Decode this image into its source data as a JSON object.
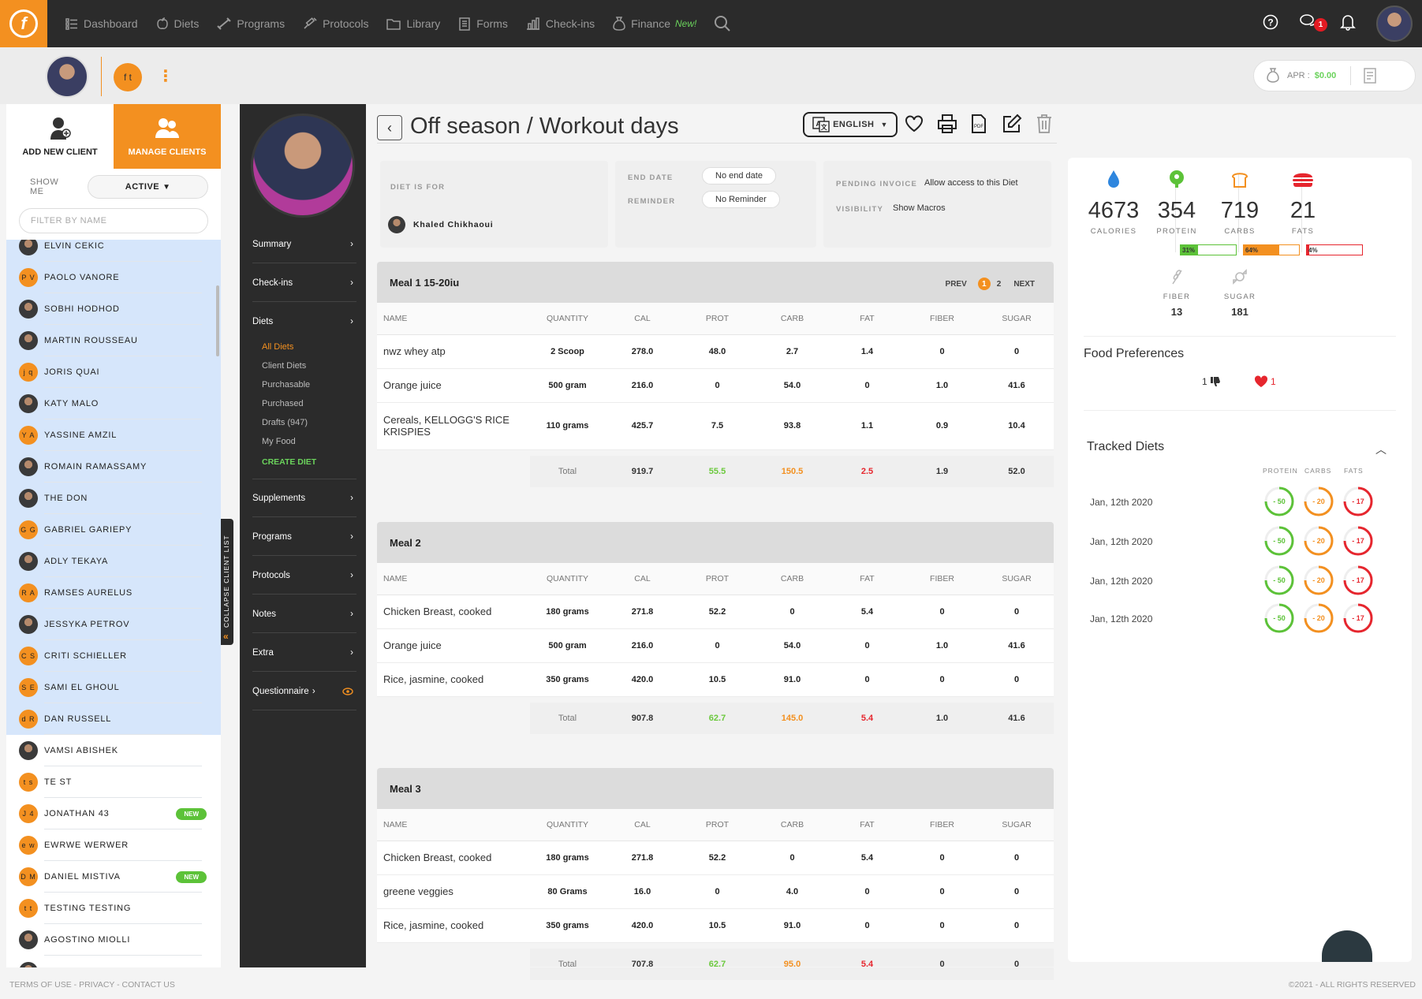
{
  "nav": {
    "items": [
      {
        "label": "Dashboard",
        "icon": "dashboard-icon"
      },
      {
        "label": "Diets",
        "icon": "apple-icon"
      },
      {
        "label": "Programs",
        "icon": "dumbbell-icon"
      },
      {
        "label": "Protocols",
        "icon": "syringe-icon"
      },
      {
        "label": "Library",
        "icon": "folder-icon"
      },
      {
        "label": "Forms",
        "icon": "form-icon"
      },
      {
        "label": "Check-ins",
        "icon": "chart-icon"
      },
      {
        "label": "Finance",
        "icon": "money-bag-icon"
      }
    ],
    "finance_new": "New!",
    "chat_badge": "1"
  },
  "subheader": {
    "initials": "f t",
    "apr_label": "APR :",
    "apr_value": "$0.00"
  },
  "clients": {
    "add_label": "ADD NEW CLIENT",
    "manage_label": "MANAGE CLIENTS",
    "show_me": "SHOW ME",
    "status": "ACTIVE",
    "filter_placeholder": "FILTER BY NAME",
    "collapse_label": "COLLAPSE CLIENT LIST",
    "list": [
      {
        "name": "ELVIN CEKIC",
        "initials": "",
        "hl": true
      },
      {
        "name": "PAOLO VANORE",
        "initials": "P V",
        "hl": true
      },
      {
        "name": "SOBHI HODHOD",
        "initials": "",
        "hl": true
      },
      {
        "name": "MARTIN ROUSSEAU",
        "initials": "",
        "hl": true
      },
      {
        "name": "JORIS QUAI",
        "initials": "j q",
        "hl": true
      },
      {
        "name": "KATY MALO",
        "initials": "",
        "hl": true
      },
      {
        "name": "YASSINE AMZIL",
        "initials": "Y A",
        "hl": true
      },
      {
        "name": "ROMAIN RAMASSAMY",
        "initials": "",
        "hl": true
      },
      {
        "name": "THE DON",
        "initials": "",
        "hl": true
      },
      {
        "name": "GABRIEL GARIEPY",
        "initials": "G G",
        "hl": true
      },
      {
        "name": "ADLY TEKAYA",
        "initials": "",
        "hl": true
      },
      {
        "name": "RAMSES AURELUS",
        "initials": "R A",
        "hl": true
      },
      {
        "name": "JESSYKA PETROV",
        "initials": "",
        "hl": true
      },
      {
        "name": "CRITI SCHIELLER",
        "initials": "C S",
        "hl": true
      },
      {
        "name": "SAMI EL GHOUL",
        "initials": "S E",
        "hl": true
      },
      {
        "name": "DAN RUSSELL",
        "initials": "d R",
        "hl": true
      },
      {
        "name": "VAMSI ABISHEK",
        "initials": "",
        "hl": false
      },
      {
        "name": "TE ST",
        "initials": "t s",
        "hl": false
      },
      {
        "name": "JONATHAN 43",
        "initials": "J 4",
        "hl": false,
        "badge": "NEW"
      },
      {
        "name": "EWRWE WERWER",
        "initials": "e w",
        "hl": false
      },
      {
        "name": "DANIEL MISTIVA",
        "initials": "D M",
        "hl": false,
        "badge": "NEW"
      },
      {
        "name": "TESTING TESTING",
        "initials": "t t",
        "hl": false
      },
      {
        "name": "AGOSTINO MIOLLI",
        "initials": "",
        "hl": false
      },
      {
        "name": "",
        "initials": "",
        "hl": false
      }
    ]
  },
  "sidenav": {
    "items": [
      "Summary",
      "Check-ins",
      "Diets",
      "Supplements",
      "Programs",
      "Protocols",
      "Notes",
      "Extra",
      "Questionnaire"
    ],
    "diet_sub": [
      "All Diets",
      "Client Diets",
      "Purchasable",
      "Purchased",
      "Drafts (947)",
      "My Food",
      "CREATE DIET"
    ]
  },
  "main": {
    "title": "Off season / Workout days",
    "language": "ENGLISH",
    "diet_for_label": "DIET IS FOR",
    "client_name": "Khaled Chikhaoui",
    "end_date_label": "END DATE",
    "end_date": "No end date",
    "reminder_label": "REMINDER",
    "reminder": "No Reminder",
    "pending_label": "PENDING INVOICE",
    "pending_value": "Allow access to this Diet",
    "visibility_label": "VISIBILITY",
    "visibility_value": "Show Macros"
  },
  "columns": [
    "NAME",
    "QUANTITY",
    "CAL",
    "PROT",
    "CARB",
    "FAT",
    "FIBER",
    "SUGAR"
  ],
  "pager": {
    "prev": "PREV",
    "page1": "1",
    "page2": "2",
    "next": "NEXT"
  },
  "meals": [
    {
      "title": "Meal 1 15-20iu",
      "rows": [
        [
          "nwz whey atp",
          "2 Scoop",
          "278.0",
          "48.0",
          "2.7",
          "1.4",
          "0",
          "0"
        ],
        [
          "Orange juice",
          "500 gram",
          "216.0",
          "0",
          "54.0",
          "0",
          "1.0",
          "41.6"
        ],
        [
          "Cereals, KELLOGG'S RICE KRISPIES",
          "110 grams",
          "425.7",
          "7.5",
          "93.8",
          "1.1",
          "0.9",
          "10.4"
        ]
      ],
      "total": [
        "Total",
        "919.7",
        "55.5",
        "150.5",
        "2.5",
        "1.9",
        "52.0"
      ]
    },
    {
      "title": "Meal 2",
      "rows": [
        [
          "Chicken Breast, cooked",
          "180 grams",
          "271.8",
          "52.2",
          "0",
          "5.4",
          "0",
          "0"
        ],
        [
          "Orange juice",
          "500 gram",
          "216.0",
          "0",
          "54.0",
          "0",
          "1.0",
          "41.6"
        ],
        [
          "Rice, jasmine, cooked",
          "350 grams",
          "420.0",
          "10.5",
          "91.0",
          "0",
          "0",
          "0"
        ]
      ],
      "total": [
        "Total",
        "907.8",
        "62.7",
        "145.0",
        "5.4",
        "1.0",
        "41.6"
      ]
    },
    {
      "title": "Meal 3",
      "rows": [
        [
          "Chicken Breast, cooked",
          "180 grams",
          "271.8",
          "52.2",
          "0",
          "5.4",
          "0",
          "0"
        ],
        [
          "greene veggies",
          "80 Grams",
          "16.0",
          "0",
          "4.0",
          "0",
          "0",
          "0"
        ],
        [
          "Rice, jasmine, cooked",
          "350 grams",
          "420.0",
          "10.5",
          "91.0",
          "0",
          "0",
          "0"
        ]
      ],
      "total": [
        "Total",
        "707.8",
        "62.7",
        "95.0",
        "5.4",
        "0",
        "0"
      ]
    }
  ],
  "summary": {
    "calories": "4673",
    "calories_label": "CALORIES",
    "protein": "354",
    "protein_label": "PROTEIN",
    "protein_pct": "31%",
    "protein_pct_num": 31,
    "carbs": "719",
    "carbs_label": "CARBS",
    "carbs_pct": "64%",
    "carbs_pct_num": 64,
    "fats": "21",
    "fats_label": "FATS",
    "fats_pct": "4%",
    "fats_pct_num": 4,
    "fiber": "13",
    "fiber_label": "FIBER",
    "sugar": "181",
    "sugar_label": "SUGAR",
    "colors": {
      "calories": "#2e86de",
      "protein": "#5cc238",
      "carbs": "#f39020",
      "fats": "#e6262e"
    }
  },
  "food_prefs": {
    "title": "Food Preferences",
    "dislikes": "1",
    "likes": "1"
  },
  "tracked": {
    "title": "Tracked Diets",
    "cols": [
      "PROTEIN",
      "CARBS",
      "FATS"
    ],
    "rows": [
      {
        "date": "Jan, 12th 2020",
        "values": [
          "- 50",
          "- 20",
          "- 17"
        ]
      },
      {
        "date": "Jan, 12th 2020",
        "values": [
          "- 50",
          "- 20",
          "- 17"
        ]
      },
      {
        "date": "Jan, 12th 2020",
        "values": [
          "- 50",
          "- 20",
          "- 17"
        ]
      },
      {
        "date": "Jan, 12th 2020",
        "values": [
          "- 50",
          "- 20",
          "- 17"
        ]
      }
    ]
  },
  "footer": {
    "links": "TERMS OF USE - PRIVACY - CONTACT US",
    "copyright": "©2021 - ALL RIGHTS RESERVED"
  }
}
